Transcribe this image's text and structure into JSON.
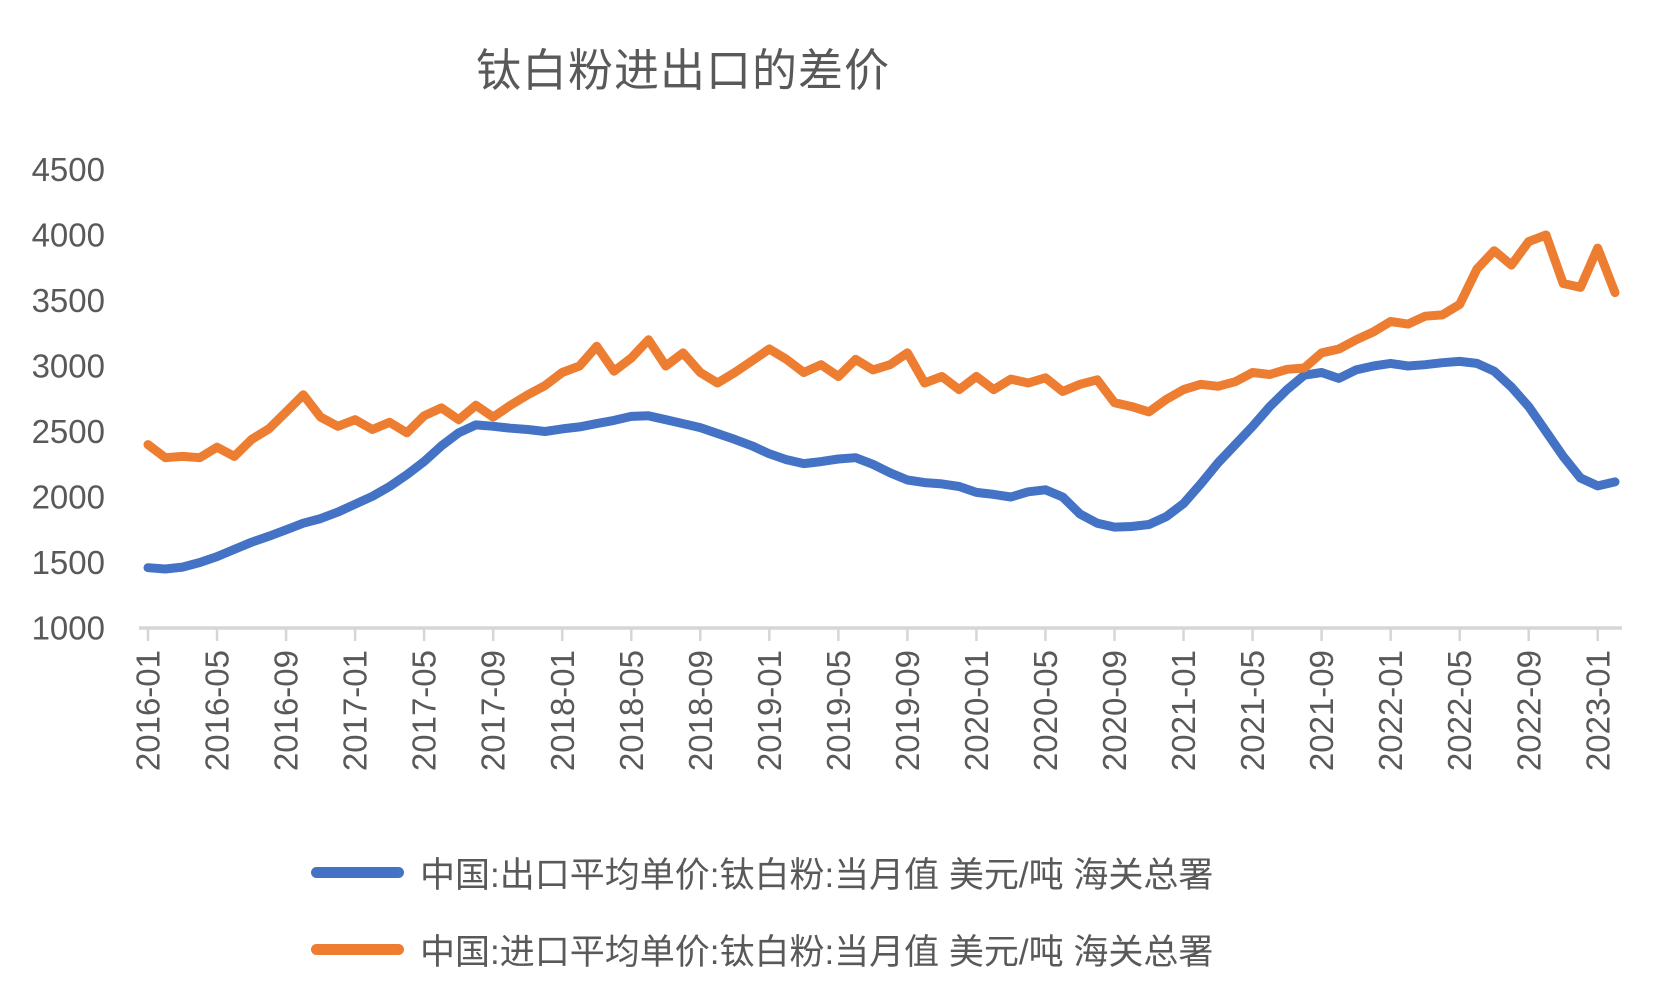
{
  "title": "钛白粉进出口的差价",
  "chart_data": {
    "type": "line",
    "title": "钛白粉进出口的差价",
    "xlabel": "",
    "ylabel": "",
    "ylim": [
      1000,
      4500
    ],
    "ytick_step": 500,
    "ytick_labels": [
      "1000",
      "1500",
      "2000",
      "2500",
      "3000",
      "3500",
      "4000",
      "4500"
    ],
    "xtick_every": 4,
    "grid": false,
    "legend_position": "bottom",
    "x": [
      "2016-01",
      "2016-02",
      "2016-03",
      "2016-04",
      "2016-05",
      "2016-06",
      "2016-07",
      "2016-08",
      "2016-09",
      "2016-10",
      "2016-11",
      "2016-12",
      "2017-01",
      "2017-02",
      "2017-03",
      "2017-04",
      "2017-05",
      "2017-06",
      "2017-07",
      "2017-08",
      "2017-09",
      "2017-10",
      "2017-11",
      "2017-12",
      "2018-01",
      "2018-02",
      "2018-03",
      "2018-04",
      "2018-05",
      "2018-06",
      "2018-07",
      "2018-08",
      "2018-09",
      "2018-10",
      "2018-11",
      "2018-12",
      "2019-01",
      "2019-02",
      "2019-03",
      "2019-04",
      "2019-05",
      "2019-06",
      "2019-07",
      "2019-08",
      "2019-09",
      "2019-10",
      "2019-11",
      "2019-12",
      "2020-01",
      "2020-02",
      "2020-03",
      "2020-04",
      "2020-05",
      "2020-06",
      "2020-07",
      "2020-08",
      "2020-09",
      "2020-10",
      "2020-11",
      "2020-12",
      "2021-01",
      "2021-02",
      "2021-03",
      "2021-04",
      "2021-05",
      "2021-06",
      "2021-07",
      "2021-08",
      "2021-09",
      "2021-10",
      "2021-11",
      "2021-12",
      "2022-01",
      "2022-02",
      "2022-03",
      "2022-04",
      "2022-05",
      "2022-06",
      "2022-07",
      "2022-08",
      "2022-09",
      "2022-10",
      "2022-11",
      "2022-12",
      "2023-01",
      "2023-02"
    ],
    "series": [
      {
        "name": "中国:出口平均单价:钛白粉:当月值 美元/吨 海关总署",
        "color": "#4472C4",
        "values": [
          1460,
          1450,
          1465,
          1500,
          1545,
          1600,
          1655,
          1700,
          1750,
          1800,
          1835,
          1885,
          1945,
          2005,
          2080,
          2170,
          2270,
          2390,
          2490,
          2550,
          2540,
          2525,
          2515,
          2500,
          2520,
          2535,
          2560,
          2585,
          2615,
          2620,
          2590,
          2560,
          2530,
          2485,
          2440,
          2390,
          2330,
          2285,
          2255,
          2270,
          2290,
          2300,
          2250,
          2185,
          2130,
          2110,
          2100,
          2080,
          2035,
          2020,
          2000,
          2040,
          2055,
          2000,
          1870,
          1800,
          1770,
          1775,
          1790,
          1850,
          1950,
          2100,
          2260,
          2400,
          2540,
          2690,
          2820,
          2930,
          2950,
          2905,
          2970,
          3000,
          3020,
          3000,
          3010,
          3025,
          3035,
          3020,
          2960,
          2840,
          2690,
          2500,
          2310,
          2145,
          2085,
          2115
        ]
      },
      {
        "name": "中国:进口平均单价:钛白粉:当月值 美元/吨 海关总署",
        "color": "#ED7D31",
        "values": [
          2400,
          2300,
          2310,
          2300,
          2380,
          2310,
          2440,
          2520,
          2650,
          2780,
          2610,
          2540,
          2590,
          2515,
          2570,
          2490,
          2620,
          2680,
          2590,
          2700,
          2610,
          2700,
          2780,
          2850,
          2950,
          3000,
          3150,
          2960,
          3060,
          3200,
          3000,
          3100,
          2950,
          2870,
          2950,
          3040,
          3130,
          3050,
          2950,
          3010,
          2920,
          3050,
          2970,
          3010,
          3100,
          2870,
          2920,
          2820,
          2920,
          2820,
          2900,
          2870,
          2910,
          2805,
          2860,
          2895,
          2720,
          2690,
          2650,
          2745,
          2820,
          2860,
          2845,
          2880,
          2950,
          2935,
          2975,
          2985,
          3100,
          3130,
          3200,
          3260,
          3340,
          3320,
          3380,
          3390,
          3470,
          3740,
          3880,
          3770,
          3950,
          4000,
          3630,
          3600,
          3900,
          3560
        ]
      }
    ],
    "axis_color": "#D6D6D6",
    "label_color": "#595959"
  }
}
